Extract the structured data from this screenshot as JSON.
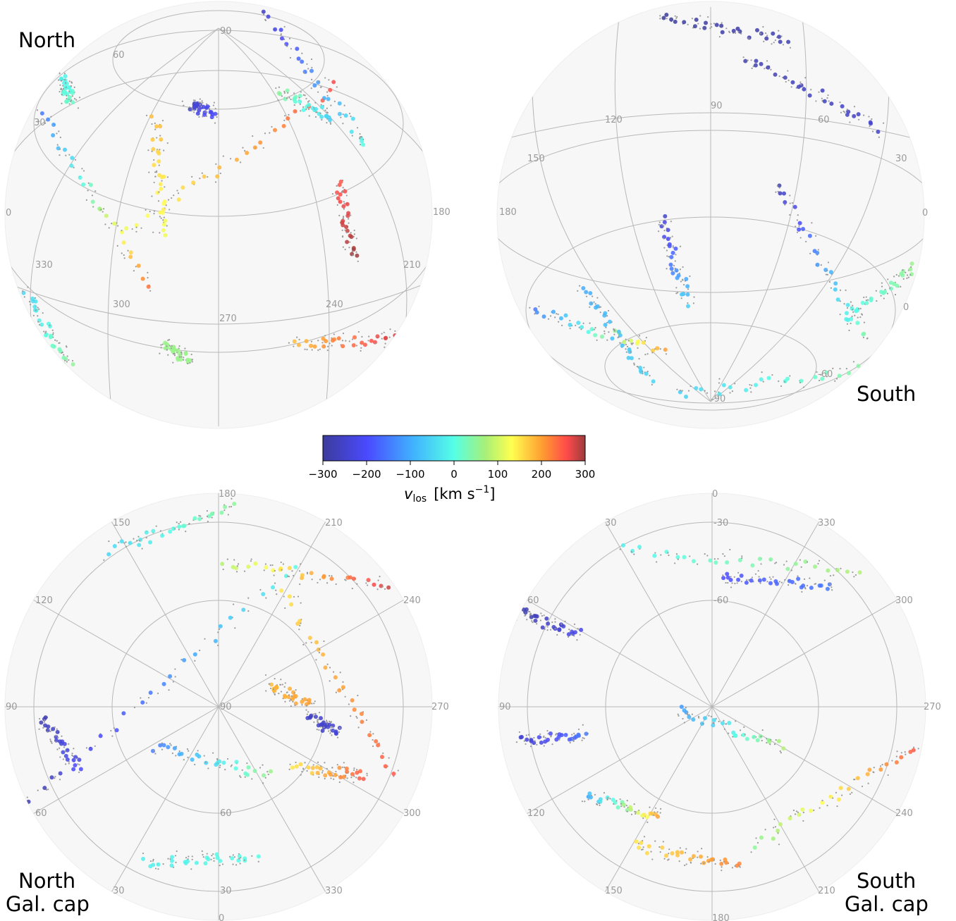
{
  "panels": [
    {
      "id": "north",
      "label_lines": [
        "North"
      ],
      "grid_labels": [
        "90",
        "60",
        "30",
        "0",
        "180",
        "330",
        "210",
        "300",
        "270",
        "240"
      ]
    },
    {
      "id": "south",
      "label_lines": [
        "South"
      ],
      "grid_labels": [
        "90",
        "120",
        "60",
        "150",
        "30",
        "180",
        "0",
        "0",
        "-60",
        "-90"
      ]
    },
    {
      "id": "north-gal-cap",
      "label_lines": [
        "North",
        "Gal. cap"
      ],
      "grid_labels": [
        "180",
        "150",
        "210",
        "120",
        "240",
        "90",
        "270",
        "60",
        "300",
        "30",
        "0",
        "330",
        "90",
        "60",
        "30"
      ]
    },
    {
      "id": "south-gal-cap",
      "label_lines": [
        "South",
        "Gal. cap"
      ],
      "grid_labels": [
        "0",
        "30",
        "330",
        "60",
        "300",
        "90",
        "270",
        "120",
        "240",
        "150",
        "180",
        "210",
        "-60",
        "-30"
      ]
    }
  ],
  "colorbar": {
    "ticks": [
      "−300",
      "−200",
      "−100",
      "0",
      "100",
      "200",
      "300"
    ],
    "label_symbol": "v",
    "label_subscript": "los",
    "label_unit": "[km s",
    "label_exp": "−1",
    "label_close": "]",
    "min": -300,
    "max": 300,
    "colormap": "jet"
  },
  "chart_data": {
    "type": "scatter",
    "title": "",
    "projection": "orthographic sky maps (4 views)",
    "color_quantity": "v_los",
    "color_units": "km s^-1",
    "color_range": [
      -300,
      300
    ],
    "background_points_color": "#9a9a9a",
    "views": [
      "North",
      "South",
      "North Gal. cap",
      "South Gal. cap"
    ]
  }
}
